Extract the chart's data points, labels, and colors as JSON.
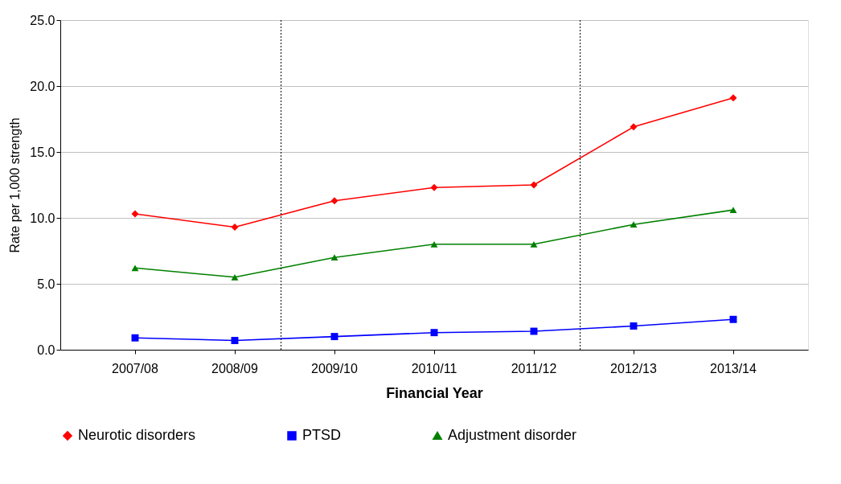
{
  "chart_data": {
    "type": "line",
    "xlabel": "Financial Year",
    "ylabel": "Rate per 1,000 strength",
    "categories": [
      "2007/08",
      "2008/09",
      "2009/10",
      "2010/11",
      "2011/12",
      "2012/13",
      "2013/14"
    ],
    "series": [
      {
        "name": "Neurotic disorders",
        "color": "#ff0000",
        "marker": "diamond",
        "values": [
          10.3,
          9.3,
          11.3,
          12.3,
          12.5,
          16.9,
          19.1
        ]
      },
      {
        "name": "PTSD",
        "color": "#0000ff",
        "marker": "square",
        "values": [
          0.9,
          0.7,
          1.0,
          1.3,
          1.4,
          1.8,
          2.3
        ]
      },
      {
        "name": "Adjustment disorder",
        "color": "#008000",
        "marker": "triangle",
        "values": [
          6.2,
          5.5,
          7.0,
          8.0,
          8.0,
          9.5,
          10.6
        ]
      }
    ],
    "ylim": [
      0,
      25
    ],
    "yticks": [
      {
        "value": 0,
        "label": "0.0"
      },
      {
        "value": 5,
        "label": "5.0"
      },
      {
        "value": 10,
        "label": "10.0"
      },
      {
        "value": 15,
        "label": "15.0"
      },
      {
        "value": 20,
        "label": "20.0"
      },
      {
        "value": 25,
        "label": "25.0"
      }
    ],
    "ref_lines": [
      {
        "axis": "x",
        "value": "2009/10",
        "line_style": "dotted",
        "color": "#000000"
      },
      {
        "axis": "x",
        "value": "2012/13",
        "line_style": "dotted",
        "color": "#000000"
      }
    ],
    "grid": "y",
    "legend": "bottom",
    "line_style": "solid"
  }
}
